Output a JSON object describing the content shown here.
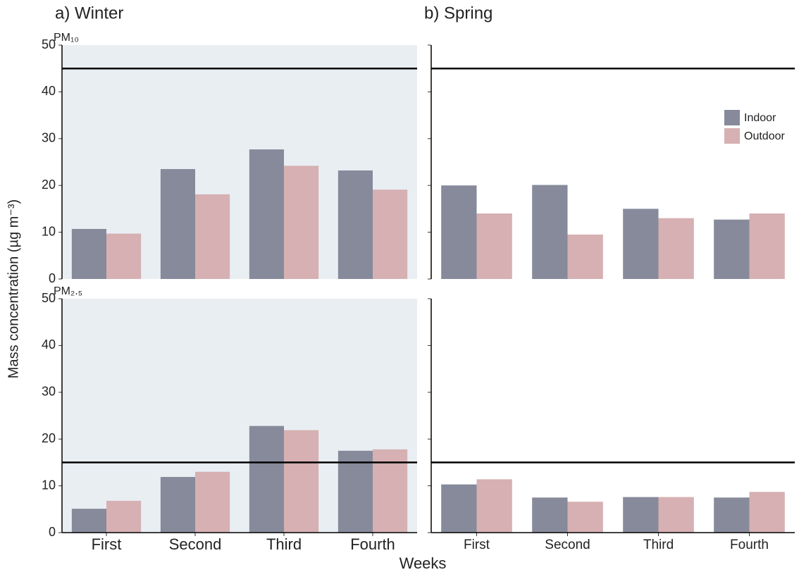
{
  "figure": {
    "ylabel": "Mass concentration (µg m⁻³)",
    "xlabel": "Weeks"
  },
  "chart_data": [
    {
      "type": "bar",
      "title": "a) Winter",
      "subtitle": "PM₁₀",
      "background": "#e9eef3",
      "categories": [
        "First",
        "Second",
        "Third",
        "Fourth"
      ],
      "series": [
        {
          "name": "Indoor",
          "color": "#868a9b",
          "values": [
            10.7,
            23.5,
            27.7,
            23.2
          ]
        },
        {
          "name": "Outdoor",
          "color": "#d6b0b2",
          "values": [
            9.7,
            18.1,
            24.2,
            19.1
          ]
        }
      ],
      "ylim": [
        0,
        50
      ],
      "yticks": [
        0,
        10,
        20,
        30,
        40,
        50
      ],
      "tick_labels": true,
      "hline": 45
    },
    {
      "type": "bar",
      "title": "b) Spring",
      "background": "#ffffff",
      "legend": "upper right",
      "categories": [
        "First",
        "Second",
        "Third",
        "Fourth"
      ],
      "series": [
        {
          "name": "Indoor",
          "color": "#868a9b",
          "values": [
            20.0,
            20.1,
            15.0,
            12.7
          ]
        },
        {
          "name": "Outdoor",
          "color": "#d6b0b2",
          "values": [
            14.0,
            9.5,
            13.0,
            14.0
          ]
        }
      ],
      "ylim": [
        0,
        50
      ],
      "yticks": [
        0,
        10,
        20,
        30,
        40,
        50
      ],
      "tick_labels": false,
      "hline": 45
    },
    {
      "type": "bar",
      "subtitle": "PM₂.₅",
      "background": "#e9eef3",
      "categories": [
        "First",
        "Second",
        "Third",
        "Fourth"
      ],
      "series": [
        {
          "name": "Indoor",
          "color": "#868a9b",
          "values": [
            5.1,
            11.9,
            22.8,
            17.5
          ]
        },
        {
          "name": "Outdoor",
          "color": "#d6b0b2",
          "values": [
            6.8,
            13.0,
            21.9,
            17.8
          ]
        }
      ],
      "ylim": [
        0,
        50
      ],
      "yticks": [
        0,
        10,
        20,
        30,
        40,
        50
      ],
      "tick_labels": true,
      "hline": 15
    },
    {
      "type": "bar",
      "background": "#ffffff",
      "categories": [
        "First",
        "Second",
        "Third",
        "Fourth"
      ],
      "series": [
        {
          "name": "Indoor",
          "color": "#868a9b",
          "values": [
            10.3,
            7.5,
            7.6,
            7.5
          ]
        },
        {
          "name": "Outdoor",
          "color": "#d6b0b2",
          "values": [
            11.4,
            6.6,
            7.6,
            8.7
          ]
        }
      ],
      "ylim": [
        0,
        50
      ],
      "yticks": [
        0,
        10,
        20,
        30,
        40,
        50
      ],
      "tick_labels": false,
      "hline": 15
    }
  ]
}
